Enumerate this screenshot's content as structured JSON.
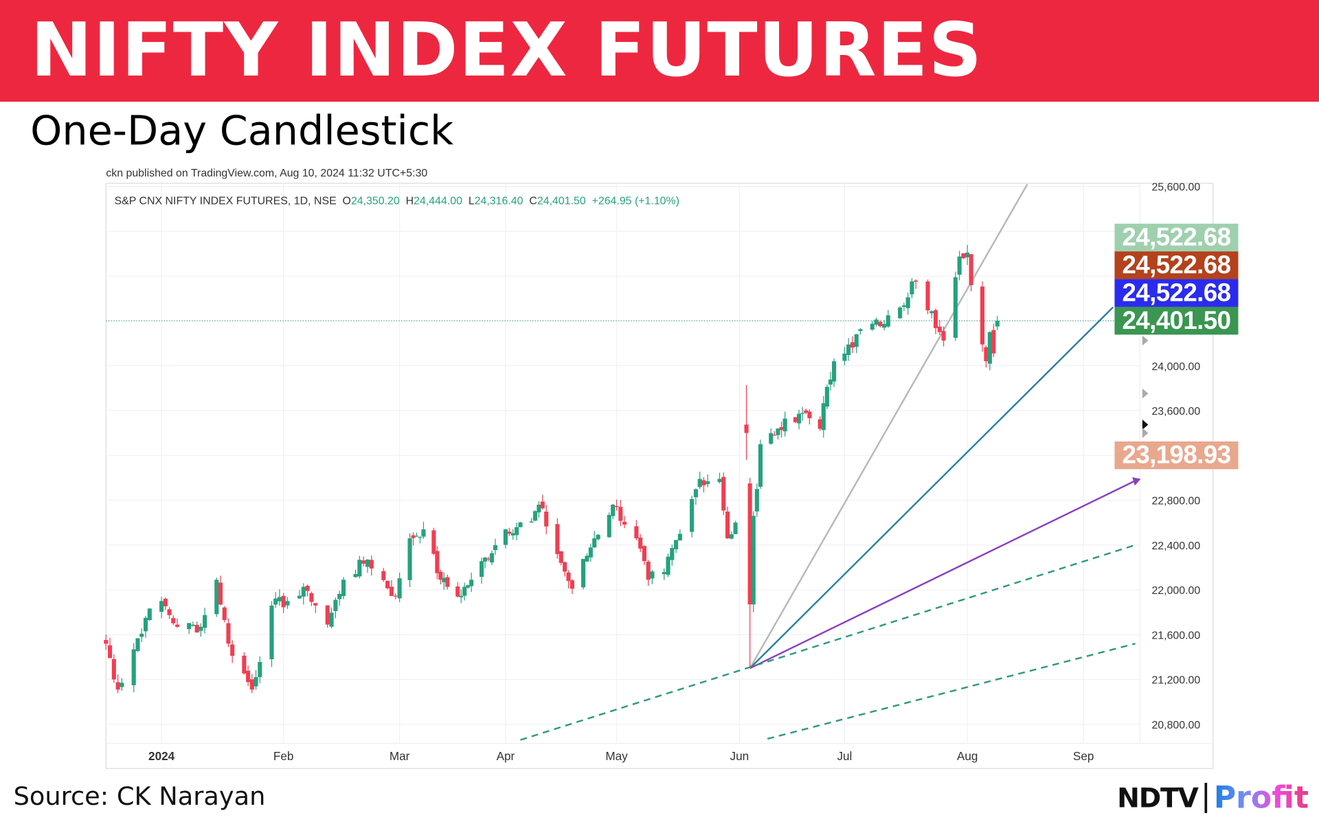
{
  "header": {
    "title": "NIFTY INDEX FUTURES",
    "subtitle": "One-Day Candlestick"
  },
  "published": "ckn published on TradingView.com, Aug 10, 2024 11:32 UTC+5:30",
  "legend": {
    "symbol": "S&P CNX NIFTY INDEX FUTURES, 1D, NSE",
    "o_label": "O",
    "o": "24,350.20",
    "h_label": "H",
    "h": "24,444.00",
    "l_label": "L",
    "l": "24,316.40",
    "c_label": "C",
    "c": "24,401.50",
    "change": "+264.95 (+1.10%)"
  },
  "price_labels": [
    {
      "text": "24,522.68",
      "color": "#9fd0ae"
    },
    {
      "text": "24,522.68",
      "color": "#b4421c"
    },
    {
      "text": "24,522.68",
      "color": "#2b2bef"
    },
    {
      "text": "24,401.50",
      "color": "#3a9650"
    },
    {
      "text": "23,198.93",
      "color": "#e8a88e"
    }
  ],
  "footer": {
    "source": "Source: CK Narayan",
    "logo_ndtv": "NDTV",
    "logo_profit": "Profit"
  },
  "chart_data": {
    "type": "candlestick",
    "title": "S&P CNX NIFTY INDEX FUTURES, 1D, NSE",
    "ylim": [
      20600,
      25600
    ],
    "y_ticks": [
      "25,600.00",
      "24,000.00",
      "23,600.00",
      "22,800.00",
      "22,400.00",
      "22,000.00",
      "21,600.00",
      "21,200.00",
      "20,800.00"
    ],
    "y_tick_values": [
      25600,
      24000,
      23600,
      22800,
      22400,
      22000,
      21600,
      21200,
      20800
    ],
    "x_ticks": [
      {
        "label": "2024",
        "date": "2024-01-01"
      },
      {
        "label": "Feb",
        "date": "2024-02-01"
      },
      {
        "label": "Mar",
        "date": "2024-03-01"
      },
      {
        "label": "Apr",
        "date": "2024-04-01"
      },
      {
        "label": "May",
        "date": "2024-05-01"
      },
      {
        "label": "Jun",
        "date": "2024-06-01"
      },
      {
        "label": "Jul",
        "date": "2024-07-01"
      },
      {
        "label": "Aug",
        "date": "2024-08-01"
      },
      {
        "label": "Sep",
        "date": "2024-09-01"
      }
    ],
    "last_close": 24401.5,
    "colors": {
      "up": "#26a17f",
      "down": "#ef3f52"
    },
    "close_keypoints": [
      [
        "2023-12-18",
        21520
      ],
      [
        "2023-12-21",
        21110
      ],
      [
        "2023-12-28",
        21750
      ],
      [
        "2024-01-01",
        21900
      ],
      [
        "2024-01-05",
        21670
      ],
      [
        "2024-01-11",
        21670
      ],
      [
        "2024-01-15",
        22090
      ],
      [
        "2024-01-18",
        21520
      ],
      [
        "2024-01-24",
        21110
      ],
      [
        "2024-01-29",
        21860
      ],
      [
        "2024-02-02",
        21900
      ],
      [
        "2024-02-07",
        21990
      ],
      [
        "2024-02-12",
        21690
      ],
      [
        "2024-02-16",
        22090
      ],
      [
        "2024-02-22",
        22270
      ],
      [
        "2024-02-29",
        21940
      ],
      [
        "2024-03-04",
        22460
      ],
      [
        "2024-03-08",
        22540
      ],
      [
        "2024-03-13",
        22090
      ],
      [
        "2024-03-18",
        21940
      ],
      [
        "2024-03-22",
        22090
      ],
      [
        "2024-04-01",
        22540
      ],
      [
        "2024-04-08",
        22610
      ],
      [
        "2024-04-10",
        22760
      ],
      [
        "2024-04-16",
        22240
      ],
      [
        "2024-04-19",
        22010
      ],
      [
        "2024-04-25",
        22460
      ],
      [
        "2024-04-30",
        22760
      ],
      [
        "2024-05-06",
        22460
      ],
      [
        "2024-05-09",
        22090
      ],
      [
        "2024-05-13",
        22160
      ],
      [
        "2024-05-17",
        22500
      ],
      [
        "2024-05-22",
        22990
      ],
      [
        "2024-05-27",
        22990
      ],
      [
        "2024-05-29",
        22460
      ],
      [
        "2024-05-31",
        22600
      ]
    ],
    "explicit_candles": [
      {
        "date": "2024-06-03",
        "o": 23475,
        "h": 23827,
        "l": 23160,
        "c": 23400
      },
      {
        "date": "2024-06-04",
        "o": 22950,
        "h": 23000,
        "l": 21300,
        "c": 21870
      },
      {
        "date": "2024-06-05",
        "o": 21870,
        "h": 22700,
        "l": 21800,
        "c": 22660
      },
      {
        "date": "2024-06-06",
        "o": 22700,
        "h": 22950,
        "l": 22650,
        "c": 22900
      },
      {
        "date": "2024-06-07",
        "o": 22920,
        "h": 23340,
        "l": 22900,
        "c": 23300
      }
    ],
    "close_keypoints_2": [
      [
        "2024-06-07",
        23300
      ],
      [
        "2024-06-12",
        23440
      ],
      [
        "2024-06-20",
        23580
      ],
      [
        "2024-06-24",
        23437
      ],
      [
        "2024-06-26",
        23812
      ],
      [
        "2024-06-28",
        24040
      ],
      [
        "2024-07-02",
        24190
      ],
      [
        "2024-07-08",
        24375
      ],
      [
        "2024-07-12",
        24450
      ],
      [
        "2024-07-15",
        24520
      ],
      [
        "2024-07-19",
        24750
      ],
      [
        "2024-07-23",
        24487
      ],
      [
        "2024-07-25",
        24300
      ],
      [
        "2024-07-26",
        24225
      ],
      [
        "2024-07-29",
        24790
      ],
      [
        "2024-07-30",
        24975
      ],
      [
        "2024-08-01",
        25010
      ],
      [
        "2024-08-02",
        24720
      ],
      [
        "2024-08-05",
        24190
      ],
      [
        "2024-08-06",
        24040
      ],
      [
        "2024-08-07",
        24300
      ],
      [
        "2024-08-08",
        24110
      ]
    ],
    "last_candle": {
      "date": "2024-08-09",
      "o": 24350.2,
      "h": 24444.0,
      "l": 24316.4,
      "c": 24401.5
    },
    "trendlines": [
      {
        "name": "gann-1x1-gray",
        "color": "#b8b8b8",
        "from": [
          "2024-06-04",
          21300
        ],
        "to": [
          "2024-08-17",
          25620
        ]
      },
      {
        "name": "fan-blue",
        "color": "#2e7ea6",
        "from": [
          "2024-06-04",
          21300
        ],
        "to": [
          "2024-09-09",
          24522.68
        ]
      },
      {
        "name": "fan-purple",
        "color": "#8a3fc2",
        "from": [
          "2024-06-04",
          21300
        ],
        "to": [
          "2024-09-16",
          22990
        ]
      },
      {
        "name": "dashed-upper",
        "color": "#2f9a7a",
        "dashed": true,
        "from": [
          "2024-04-05",
          20660
        ],
        "to": [
          "2024-09-15",
          22400
        ]
      },
      {
        "name": "dashed-lower",
        "color": "#2f9a7a",
        "dashed": true,
        "from": [
          "2024-06-09",
          20670
        ],
        "to": [
          "2024-09-15",
          21520
        ]
      }
    ]
  }
}
